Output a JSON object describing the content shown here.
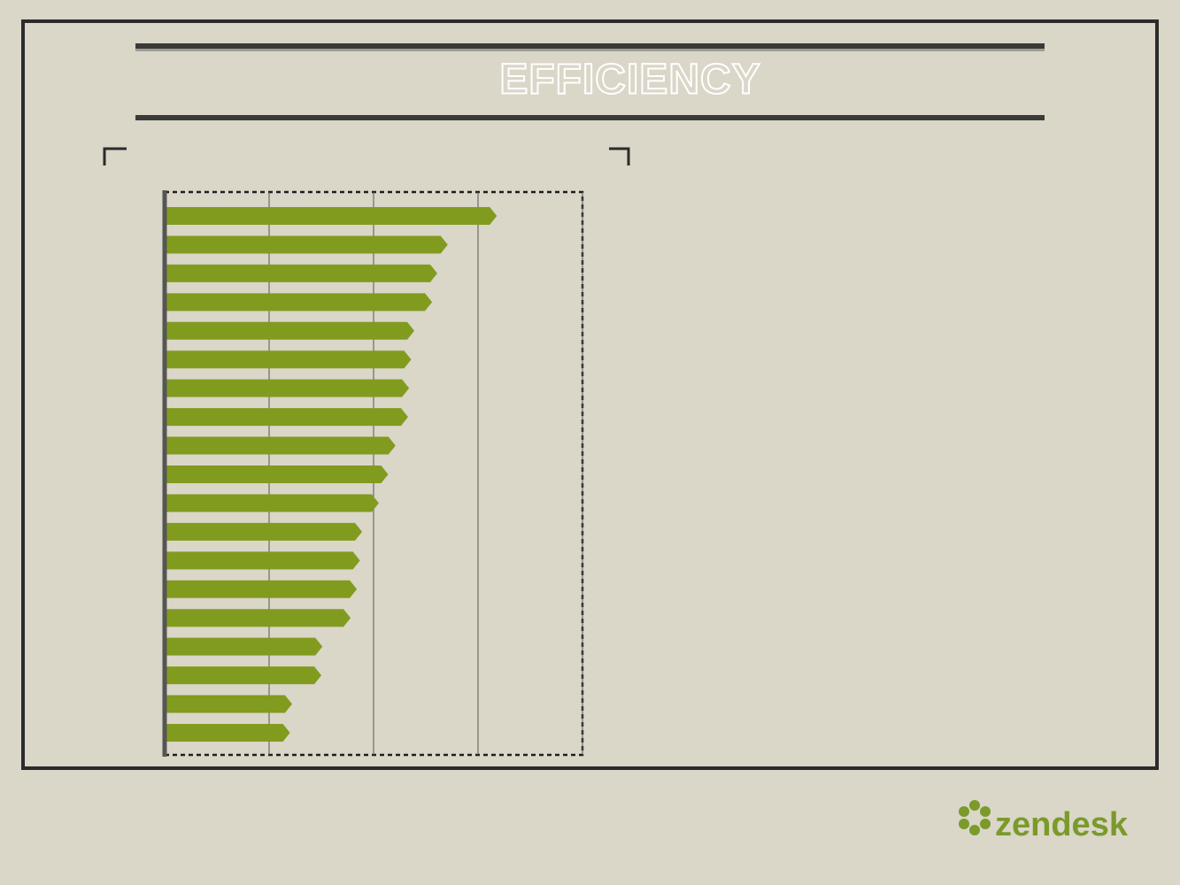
{
  "title": "EFFICIENCY",
  "logo": "zendesk",
  "chart_data": {
    "type": "bar",
    "orientation": "horizontal",
    "categories": [
      null,
      null,
      null,
      null,
      null,
      null,
      null,
      null,
      null,
      null,
      null,
      null,
      null,
      null,
      null,
      null,
      null,
      null,
      null
    ],
    "values": [
      3.18,
      2.71,
      2.61,
      2.56,
      2.39,
      2.36,
      2.34,
      2.33,
      2.21,
      2.14,
      2.05,
      1.89,
      1.87,
      1.84,
      1.78,
      1.51,
      1.5,
      1.22,
      1.2
    ],
    "color": "#819b1f",
    "xlim": [
      0,
      4
    ],
    "xticks": [
      0,
      1,
      2,
      3,
      4
    ],
    "grid": true
  }
}
